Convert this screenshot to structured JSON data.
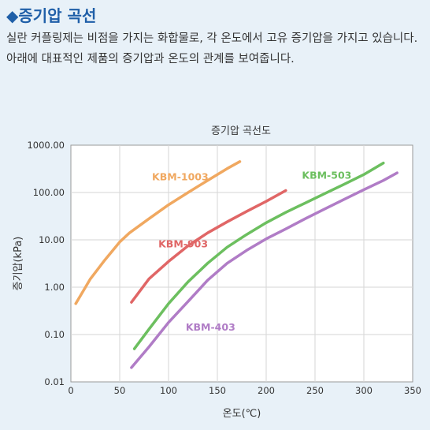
{
  "page": {
    "heading": "◆증기압 곡선",
    "paragraph1": "실란 커플링제는 비점을 가지는 화합물로, 각 온도에서 고유 증기압을 가지고 있습니다.",
    "paragraph2": "아래에 대표적인 제품의 증기압과 온도의 관계를 보여줍니다."
  },
  "chart_data": {
    "type": "line",
    "title": "증기압 곡선도",
    "xlabel": "온도(℃)",
    "ylabel": "증기압(kPa)",
    "xlim": [
      0,
      350
    ],
    "ylim": [
      0.01,
      1000
    ],
    "yscale": "log",
    "x_ticks": [
      0,
      50,
      100,
      150,
      200,
      250,
      300,
      350
    ],
    "x_tick_labels": [
      "0",
      "50",
      "100",
      "150",
      "200",
      "250",
      "300",
      "350"
    ],
    "y_ticks": [
      0.01,
      0.1,
      1,
      10,
      100,
      1000
    ],
    "y_tick_labels": [
      "0.01",
      "0.10",
      "1.00",
      "10.00",
      "100.00",
      "1000.00"
    ],
    "grid": true,
    "series": [
      {
        "name": "KBM-1003",
        "color": "#f0a860",
        "x": [
          5,
          20,
          35,
          50,
          60,
          80,
          100,
          120,
          140,
          160,
          173
        ],
        "y": [
          0.45,
          1.5,
          3.8,
          9,
          14,
          28,
          55,
          100,
          180,
          320,
          450
        ]
      },
      {
        "name": "KBM-903",
        "color": "#e06666",
        "x": [
          62,
          80,
          100,
          120,
          140,
          160,
          180,
          200,
          220
        ],
        "y": [
          0.48,
          1.5,
          3.5,
          7.5,
          14,
          24,
          40,
          65,
          110
        ]
      },
      {
        "name": "KBM-503",
        "color": "#6cbf5f",
        "x": [
          65,
          80,
          100,
          120,
          140,
          160,
          180,
          200,
          220,
          240,
          260,
          280,
          300,
          320
        ],
        "y": [
          0.05,
          0.13,
          0.45,
          1.3,
          3.2,
          7,
          13,
          23,
          38,
          60,
          95,
          150,
          240,
          420
        ]
      },
      {
        "name": "KBM-403",
        "color": "#b07cc6",
        "x": [
          62,
          80,
          100,
          120,
          140,
          160,
          180,
          200,
          220,
          240,
          260,
          280,
          300,
          320,
          334
        ],
        "y": [
          0.02,
          0.055,
          0.18,
          0.5,
          1.4,
          3.2,
          6,
          10.5,
          17,
          28,
          45,
          72,
          115,
          180,
          260
        ]
      }
    ],
    "labels": [
      {
        "text": "KBM-1003",
        "color": "#f0a860",
        "x": 112,
        "y": 180
      },
      {
        "text": "KBM-903",
        "color": "#e06666",
        "x": 115,
        "y": 7
      },
      {
        "text": "KBM-503",
        "color": "#6cbf5f",
        "x": 262,
        "y": 195
      },
      {
        "text": "KBM-403",
        "color": "#b07cc6",
        "x": 143,
        "y": 0.12
      }
    ]
  }
}
